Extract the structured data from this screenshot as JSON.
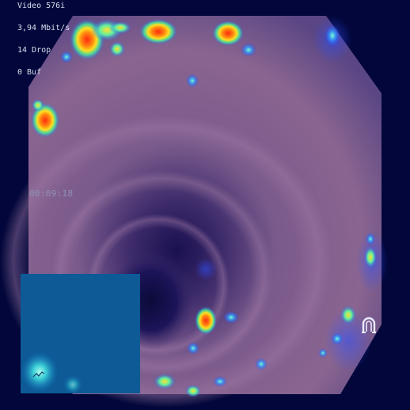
{
  "osd": {
    "line1": "Video 576i",
    "line2": "3,94 Mbit/s",
    "line3": "14 Drop",
    "line4": "0 Buf"
  },
  "timestamp": "00:09:18",
  "icons": {
    "overlay_icon": "endoscope-magnet-icon"
  },
  "colors": {
    "background": "#02063a",
    "tissue": "#7a5a8a",
    "tissue_dark": "#2a1e5a",
    "inset": "#0d5a96",
    "heat_hot": "#ff3a10",
    "heat_warm": "#ffe020",
    "heat_cool": "#30f0a0"
  }
}
